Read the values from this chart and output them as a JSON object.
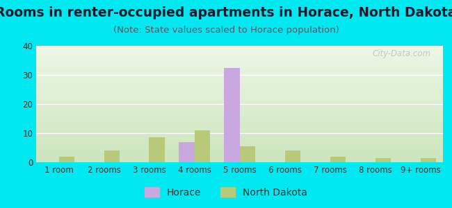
{
  "title": "Rooms in renter-occupied apartments in Horace, North Dakota",
  "subtitle": "(Note: State values scaled to Horace population)",
  "categories": [
    "1 room",
    "2 rooms",
    "3 rooms",
    "4 rooms",
    "5 rooms",
    "6 rooms",
    "7 rooms",
    "8 rooms",
    "9+ rooms"
  ],
  "horace_values": [
    0,
    0,
    0,
    7,
    32.5,
    0,
    0,
    0,
    0
  ],
  "nd_values": [
    2,
    4,
    8.5,
    11,
    5.5,
    4,
    2,
    1.5,
    1.5
  ],
  "horace_color": "#c9a8e0",
  "nd_color": "#b8ca7a",
  "background_outer": "#00e8f0",
  "ylim": [
    0,
    40
  ],
  "yticks": [
    0,
    10,
    20,
    30,
    40
  ],
  "bar_width": 0.35,
  "title_fontsize": 13.5,
  "subtitle_fontsize": 9.5,
  "tick_fontsize": 8.5,
  "legend_fontsize": 10,
  "watermark": "City-Data.com",
  "title_color": "#1a1a2e",
  "subtitle_color": "#555566"
}
